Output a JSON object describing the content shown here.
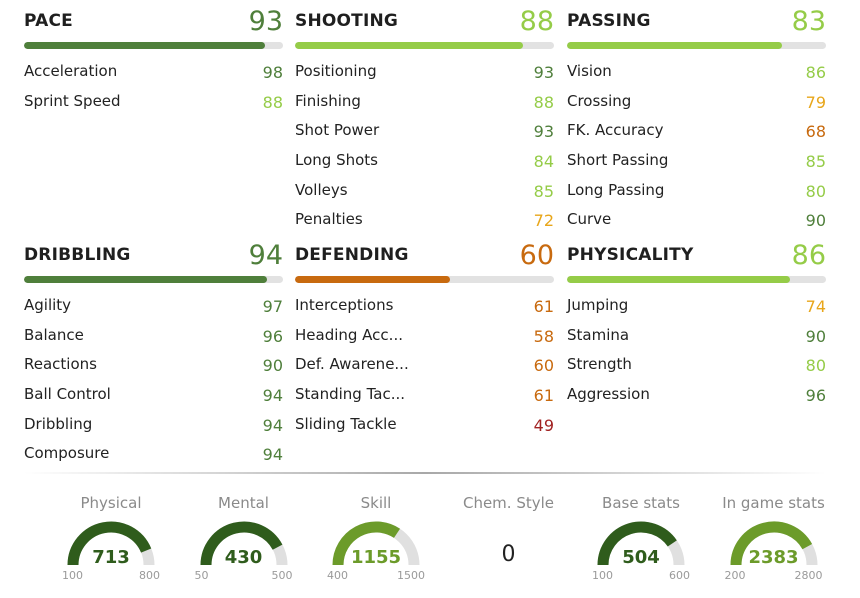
{
  "colors": {
    "dark_green": "#4f7f3b",
    "light_green": "#95cc48",
    "yellow": "#e8a61a",
    "orange": "#c86a0f",
    "red": "#a12222",
    "bar_track": "#e2e2e2",
    "gauge_track": "#e0e0e0",
    "gauge_dark": "#2f5c1c",
    "gauge_mid": "#6c9b2a"
  },
  "categories": [
    {
      "name": "PACE",
      "value": "93",
      "rating": 93,
      "color": "dark_green",
      "stats": [
        {
          "name": "Acceleration",
          "value": "98",
          "color": "dark_green"
        },
        {
          "name": "Sprint Speed",
          "value": "88",
          "color": "light_green"
        }
      ]
    },
    {
      "name": "SHOOTING",
      "value": "88",
      "rating": 88,
      "color": "light_green",
      "stats": [
        {
          "name": "Positioning",
          "value": "93",
          "color": "dark_green"
        },
        {
          "name": "Finishing",
          "value": "88",
          "color": "light_green"
        },
        {
          "name": "Shot Power",
          "value": "93",
          "color": "dark_green"
        },
        {
          "name": "Long Shots",
          "value": "84",
          "color": "light_green"
        },
        {
          "name": "Volleys",
          "value": "85",
          "color": "light_green"
        },
        {
          "name": "Penalties",
          "value": "72",
          "color": "yellow"
        }
      ]
    },
    {
      "name": "PASSING",
      "value": "83",
      "rating": 83,
      "color": "light_green",
      "stats": [
        {
          "name": "Vision",
          "value": "86",
          "color": "light_green"
        },
        {
          "name": "Crossing",
          "value": "79",
          "color": "yellow"
        },
        {
          "name": "FK. Accuracy",
          "value": "68",
          "color": "orange"
        },
        {
          "name": "Short Passing",
          "value": "85",
          "color": "light_green"
        },
        {
          "name": "Long Passing",
          "value": "80",
          "color": "light_green"
        },
        {
          "name": "Curve",
          "value": "90",
          "color": "dark_green"
        }
      ]
    },
    {
      "name": "DRIBBLING",
      "value": "94",
      "rating": 94,
      "color": "dark_green",
      "stats": [
        {
          "name": "Agility",
          "value": "97",
          "color": "dark_green"
        },
        {
          "name": "Balance",
          "value": "96",
          "color": "dark_green"
        },
        {
          "name": "Reactions",
          "value": "90",
          "color": "dark_green"
        },
        {
          "name": "Ball Control",
          "value": "94",
          "color": "dark_green"
        },
        {
          "name": "Dribbling",
          "value": "94",
          "color": "dark_green"
        },
        {
          "name": "Composure",
          "value": "94",
          "color": "dark_green"
        }
      ]
    },
    {
      "name": "DEFENDING",
      "value": "60",
      "rating": 60,
      "color": "orange",
      "stats": [
        {
          "name": "Interceptions",
          "value": "61",
          "color": "orange"
        },
        {
          "name": "Heading Acc...",
          "value": "58",
          "color": "orange"
        },
        {
          "name": "Def. Awarene...",
          "value": "60",
          "color": "orange"
        },
        {
          "name": "Standing Tac...",
          "value": "61",
          "color": "orange"
        },
        {
          "name": "Sliding Tackle",
          "value": "49",
          "color": "red"
        }
      ]
    },
    {
      "name": "PHYSICALITY",
      "value": "86",
      "rating": 86,
      "color": "light_green",
      "stats": [
        {
          "name": "Jumping",
          "value": "74",
          "color": "yellow"
        },
        {
          "name": "Stamina",
          "value": "90",
          "color": "dark_green"
        },
        {
          "name": "Strength",
          "value": "80",
          "color": "light_green"
        },
        {
          "name": "Aggression",
          "value": "96",
          "color": "dark_green"
        }
      ]
    }
  ],
  "gauges": [
    {
      "label": "Physical",
      "value": "713",
      "num": 713,
      "min": "100",
      "max": "800",
      "min_num": 100,
      "max_num": 800,
      "color": "gauge_dark"
    },
    {
      "label": "Mental",
      "value": "430",
      "num": 430,
      "min": "50",
      "max": "500",
      "min_num": 50,
      "max_num": 500,
      "color": "gauge_dark"
    },
    {
      "label": "Skill",
      "value": "1155",
      "num": 1155,
      "min": "400",
      "max": "1500",
      "min_num": 400,
      "max_num": 1500,
      "color": "gauge_mid"
    },
    {
      "label": "Chem. Style",
      "value": "0",
      "type": "text"
    },
    {
      "label": "Base stats",
      "value": "504",
      "num": 504,
      "min": "100",
      "max": "600",
      "min_num": 100,
      "max_num": 600,
      "color": "gauge_dark"
    },
    {
      "label": "In game stats",
      "value": "2383",
      "num": 2383,
      "min": "200",
      "max": "2800",
      "min_num": 200,
      "max_num": 2800,
      "color": "gauge_mid"
    }
  ]
}
